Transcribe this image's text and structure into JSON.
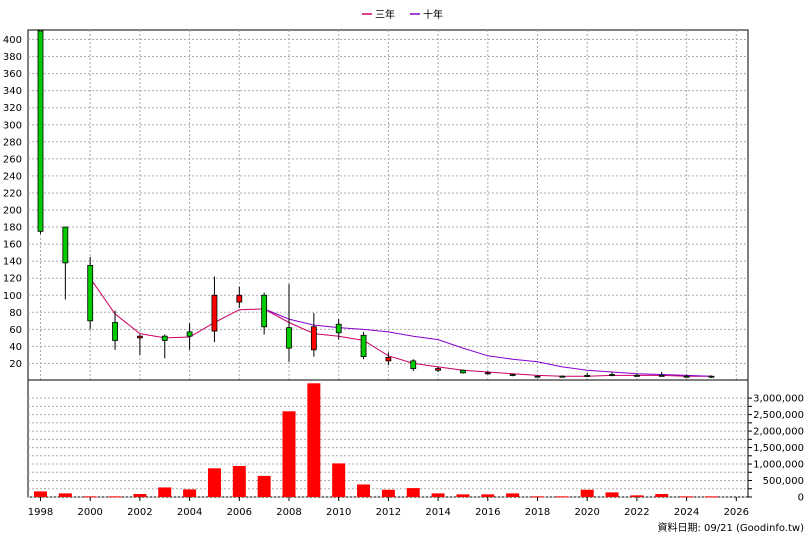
{
  "chart_data": [
    {
      "type": "candlestick",
      "legend": {
        "placement": "top-center",
        "entries": [
          {
            "name": "三年",
            "color": "#CC0066"
          },
          {
            "name": "十年",
            "color": "#8800CC"
          }
        ]
      },
      "x_ticks": [
        1998,
        2000,
        2002,
        2004,
        2006,
        2008,
        2010,
        2012,
        2014,
        2016,
        2018,
        2020,
        2022,
        2024,
        2026
      ],
      "y_ticks": [
        20,
        40,
        60,
        80,
        100,
        120,
        140,
        160,
        180,
        200,
        220,
        240,
        260,
        280,
        300,
        320,
        340,
        360,
        380,
        400
      ],
      "xlim": [
        1998,
        2026
      ],
      "ylim": [
        0,
        410
      ],
      "grid": true,
      "candles": [
        {
          "year": 1998,
          "open": 175,
          "close": 410,
          "high": 410,
          "low": 172
        },
        {
          "year": 1999,
          "open": 138,
          "close": 180,
          "high": 180,
          "low": 95
        },
        {
          "year": 2000,
          "open": 70,
          "close": 135,
          "high": 145,
          "low": 60
        },
        {
          "year": 2001,
          "open": 47,
          "close": 68,
          "high": 82,
          "low": 36
        },
        {
          "year": 2002,
          "open": 52,
          "close": 50,
          "high": 54,
          "low": 30
        },
        {
          "year": 2003,
          "open": 47,
          "close": 52,
          "high": 54,
          "low": 26
        },
        {
          "year": 2004,
          "open": 52,
          "close": 57,
          "high": 67,
          "low": 36
        },
        {
          "year": 2005,
          "open": 100,
          "close": 58,
          "high": 122,
          "low": 45
        },
        {
          "year": 2006,
          "open": 100,
          "close": 92,
          "high": 110,
          "low": 85
        },
        {
          "year": 2007,
          "open": 63,
          "close": 100,
          "high": 103,
          "low": 54
        },
        {
          "year": 2008,
          "open": 38,
          "close": 62,
          "high": 113,
          "low": 22
        },
        {
          "year": 2009,
          "open": 63,
          "close": 36,
          "high": 79,
          "low": 28
        },
        {
          "year": 2010,
          "open": 56,
          "close": 66,
          "high": 72,
          "low": 48
        },
        {
          "year": 2011,
          "open": 28,
          "close": 53,
          "high": 57,
          "low": 25
        },
        {
          "year": 2012,
          "open": 27,
          "close": 23,
          "high": 33,
          "low": 18
        },
        {
          "year": 2013,
          "open": 14,
          "close": 23,
          "high": 25,
          "low": 11
        },
        {
          "year": 2014,
          "open": 14,
          "close": 12,
          "high": 16,
          "low": 10
        },
        {
          "year": 2015,
          "open": 9,
          "close": 12,
          "high": 13,
          "low": 8
        },
        {
          "year": 2016,
          "open": 9,
          "close": 8,
          "high": 11,
          "low": 7
        },
        {
          "year": 2017,
          "open": 6,
          "close": 7,
          "high": 8,
          "low": 5
        },
        {
          "year": 2018,
          "open": 5,
          "close": 5,
          "high": 6,
          "low": 4
        },
        {
          "year": 2019,
          "open": 5,
          "close": 5,
          "high": 6,
          "low": 4
        },
        {
          "year": 2020,
          "open": 5,
          "close": 6,
          "high": 9,
          "low": 4
        },
        {
          "year": 2021,
          "open": 6,
          "close": 7,
          "high": 10,
          "low": 5
        },
        {
          "year": 2022,
          "open": 6,
          "close": 6,
          "high": 8,
          "low": 5
        },
        {
          "year": 2023,
          "open": 6,
          "close": 6,
          "high": 10,
          "low": 5
        },
        {
          "year": 2024,
          "open": 5,
          "close": 5,
          "high": 7,
          "low": 4
        },
        {
          "year": 2025,
          "open": 4,
          "close": 5,
          "high": 6,
          "low": 3
        }
      ],
      "series": [
        {
          "name": "三年",
          "color": "#CC0066",
          "x": [
            2000,
            2001,
            2002,
            2003,
            2004,
            2005,
            2006,
            2007,
            2008,
            2009,
            2010,
            2011,
            2012,
            2013,
            2014,
            2015,
            2016,
            2017,
            2018,
            2019,
            2020,
            2021,
            2022,
            2023,
            2024,
            2025
          ],
          "values": [
            120,
            78,
            55,
            50,
            51,
            68,
            83,
            84,
            68,
            55,
            52,
            47,
            29,
            20,
            16,
            12,
            10,
            8,
            6,
            5,
            5,
            6,
            6,
            6,
            5,
            5
          ]
        },
        {
          "name": "十年",
          "color": "#8800CC",
          "x": [
            2007,
            2008,
            2009,
            2010,
            2011,
            2012,
            2013,
            2014,
            2015,
            2016,
            2017,
            2018,
            2019,
            2020,
            2021,
            2022,
            2023,
            2024,
            2025
          ],
          "values": [
            84,
            72,
            65,
            62,
            60,
            57,
            52,
            48,
            38,
            29,
            25,
            22,
            16,
            12,
            10,
            8,
            7,
            6,
            5
          ]
        }
      ]
    },
    {
      "type": "bar",
      "bar_color": "#FF0000",
      "x": [
        1998,
        1999,
        2000,
        2001,
        2002,
        2003,
        2004,
        2005,
        2006,
        2007,
        2008,
        2009,
        2010,
        2011,
        2012,
        2013,
        2014,
        2015,
        2016,
        2017,
        2018,
        2019,
        2020,
        2021,
        2022,
        2023,
        2024,
        2025
      ],
      "values": [
        170000,
        110000,
        20000,
        20000,
        90000,
        290000,
        230000,
        870000,
        940000,
        640000,
        2600000,
        3450000,
        1020000,
        380000,
        220000,
        270000,
        110000,
        80000,
        80000,
        110000,
        20000,
        20000,
        220000,
        140000,
        50000,
        90000,
        20000,
        20000
      ],
      "y_ticks": [
        "0",
        "250,000",
        "500,000",
        "750,000",
        "1,000,000",
        "1,250,000",
        "1,500,000",
        "1,750,000",
        "2,000,000",
        "2,250,000",
        "2,500,000",
        "2,750,000",
        "3,000,000"
      ],
      "y_tick_values": [
        0,
        250000,
        500000,
        750000,
        1000000,
        1250000,
        1500000,
        1750000,
        2000000,
        2250000,
        2500000,
        2750000,
        3000000
      ],
      "y_labeled_values": [
        0,
        500000,
        1000000,
        1500000,
        2000000,
        2500000,
        3000000
      ],
      "ylim": [
        0,
        3550000
      ],
      "grid": true
    }
  ],
  "footer": {
    "text": "資料日期: 09/21  (Goodinfo.tw)"
  }
}
